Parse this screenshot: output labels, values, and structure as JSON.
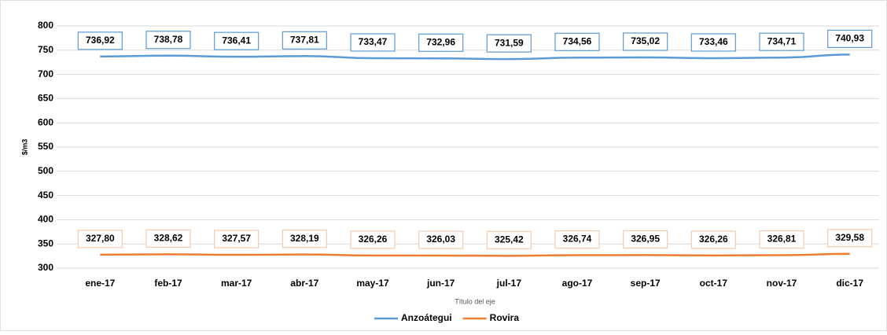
{
  "chart_data": {
    "type": "line",
    "x_label": "Título del eje",
    "y_label": "$/m3",
    "categories": [
      "ene-17",
      "feb-17",
      "mar-17",
      "abr-17",
      "may-17",
      "jun-17",
      "jul-17",
      "ago-17",
      "sep-17",
      "oct-17",
      "nov-17",
      "dic-17"
    ],
    "series": [
      {
        "name": "Anzoátegui",
        "color": "#5b9bd5",
        "values": [
          736.92,
          738.78,
          736.41,
          737.81,
          733.47,
          732.96,
          731.59,
          734.56,
          735.02,
          733.46,
          734.71,
          740.93
        ],
        "value_labels": [
          "736,92",
          "738,78",
          "736,41",
          "737,81",
          "733,47",
          "732,96",
          "731,59",
          "734,56",
          "735,02",
          "733,46",
          "734,71",
          "740,93"
        ]
      },
      {
        "name": "Rovira",
        "color": "#ed7d31",
        "values": [
          327.8,
          328.62,
          327.57,
          328.19,
          326.26,
          326.03,
          325.42,
          326.74,
          326.95,
          326.26,
          326.81,
          329.58
        ],
        "value_labels": [
          "327,80",
          "328,62",
          "327,57",
          "328,19",
          "326,26",
          "326,03",
          "325,42",
          "326,74",
          "326,95",
          "326,26",
          "326,81",
          "329,58"
        ]
      }
    ],
    "ylim": [
      300,
      800
    ],
    "yticks": [
      300,
      350,
      400,
      450,
      500,
      550,
      600,
      650,
      700,
      750,
      800
    ],
    "grid": true,
    "legend": "bottom"
  }
}
